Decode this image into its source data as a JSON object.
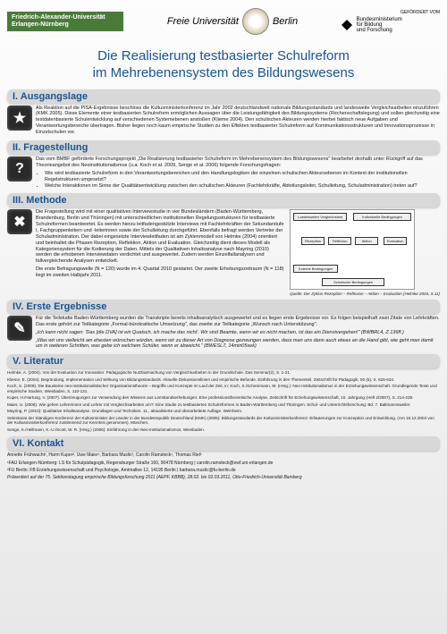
{
  "header": {
    "uni_left_line1": "Friedrich-Alexander-Universität",
    "uni_left_line2": "Erlangen-Nürnberg",
    "fu_prefix": "Freie Universität",
    "fu_suffix": "Berlin",
    "sponsor_label": "GEFÖRDERT VOM",
    "ministry_line1": "Bundesministerium",
    "ministry_line2": "für Bildung",
    "ministry_line3": "und Forschung"
  },
  "title": {
    "line1": "Die Realisierung testbasierter Schulreform",
    "line2": "im Mehrebenensystem des Bildungswesens"
  },
  "sections": {
    "s1": {
      "heading": "I.   Ausgangslage",
      "icon": "★",
      "p1": "Als Reaktion auf die PISA-Ergebnisse beschloss die Kultusministerkonferenz im Jahr 2002 deutschlandweit nationale Bildungsstandards und landesweite Vergleichsarbeiten einzuführen (KMK 2005). Diese Elemente einer testbasierten Schulreform ermöglichen Aussagen über die Leistungsfähigkeit des Bildungssystems (Rechenschaftslegung) und sollen gleichzeitig eine testdatenbasierte Schulentwicklung auf verschiedenen Systemebenen anstoßen (Klieme 2004). Den schulischen Akteuren werden hierbei faktisch neue Aufgaben und Verantwortungsbereiche übertragen. Bisher liegen noch kaum empirische Studien zu den Effekten testbasierter Schulreform auf Kommunikationsstrukturen und Innovationsprozesse in Einzelschulen vor."
    },
    "s2": {
      "heading": "II.  Fragestellung",
      "icon": "?",
      "p1": "Das vom BMBF geförderte Forschungsprojekt „Die Realisierung testbasierter Schulreform im Mehrebenensystem des Bildungswesens\" bearbeitet deshalb unter Rückgriff auf das Theorieangebot des Neoinstitutionalismus (u.a. Koch et al. 2009, Senge et al. 2006) folgende Forschungsfragen:",
      "li1": "Wie wird testbasierte Schulreform in den Verantwortungsbereichen und den Handlungslogiken der einzelnen schulischen Akteursebenen im Kontext der institutionellen Regelstrukturen umgesetzt?",
      "li2": "Welche Interaktionen im Sinne der Qualitätsentwicklung zwischen den schulischen Akteuren (Fachlehrkräfte, Abteilungsleiter, Schulleitung, Schuladministration) treten auf?"
    },
    "s3": {
      "heading": "III. Methode",
      "icon": "✖",
      "p1": "Die Fragestellung wird mit einer qualitativen Interviewstudie in vier Bundesländern (Baden-Württemberg, Brandenburg, Berlin und Thüringen) mit unterschiedlichen institutionellen Regelungsstrukturen für testbasierte Schulreformen beantwortet. Es werden hierzu leitfadengestützte Interviews mit Fachlehrkräften der Sekundarstufe I, Fachgruppenleitern und -leiterinnen sowie der Schulleitung durchgeführt. Ebenfalls befragt werden Vertreter der Schuladministration. Der dabei eingesetzte Interviewleitfaden ist am Zyklenmodell von Helmke (2004) orientiert und beinhaltet die Phasen Rezeption, Reflektion, Aktion und Evaluation. Gleichzeitig dient dieses Modell als Kategoriensystem für die Kodierung der Daten. Mittels der Qualitativen Inhaltsanalyse nach Mayring (2010) werden die erhobenen Interviewdaten verdichtet und ausgewertet. Zudem werden Einzelfallanalysen und fallvergleichende Analysen entwickelt.",
      "p2": "Die erste Befragungswelle (N = 120) wurde im 4. Quartal 2010 gestartet. Der zweite Erhebungszeitraum (N = 118) liegt im zweiten Halbjahr 2011.",
      "diagram": {
        "box1": "Landesweiter Vergleichstest",
        "box2": "Individuelle Bedingungen",
        "box3": "Rezeption",
        "box4": "Reflexion",
        "box5": "Aktion",
        "box6": "Evaluation",
        "box7": "Externe Bedingungen",
        "box8": "Schulische Bedingungen",
        "caption": "Quelle:  Der Zyklus Rezeption – Reflexion – Aktion – Evaluation (Helmke 2004, S.11)"
      }
    },
    "s4": {
      "heading": "IV. Erste Ergebnisse",
      "icon": "✎",
      "p1": "Für die Teilstudie Baden-Württemberg wurden die Transkripte bereits inhaltsanalytisch ausgewertet und es liegen erste Ergebnisse vor. Es folgen beispielhaft zwei Zitate von Lehrkräften. Das erste gehört zur Teilkategorie „Formal-bürokratische Umsetzung\", das zweite zur Teilkategorie „Wunsch nach Unterstützung\".",
      "q1": "„Ich kann nicht sagen: 'Das [die DVA] ist ein Quatsch, ich mache das nicht'. Wir sind Beamte, wenn wir es nicht machen, ist das ein Dienstvergehen!\" (BWBRL4, Z.136ff.)",
      "q2": "„Was wir uns vielleicht am ehesten wünschen würden, wenn wir zu dieser Art von Diagnose gezwungen werden, dass man uns dann auch etwas an die Hand gibt, wie geht man damit um in weiteren Schritten, was gebe ich welchem Schüler, wenn er abweicht.\" (BWESL7, 14min05sek)"
    },
    "s5": {
      "heading": "V.  Literatur",
      "refs": [
        "Helmke, A. (2004). Von der Evaluation zur Innovation: Pädagogische Nutzbarmachung von Vergleichsarbeiten in der Grundschule. Das Seminar(2), S. 1-21.",
        "Klieme, E. (2004). Begründung, Implementation und Wirkung von Bildungsstandards. Aktuelle Diskussionslinien und empirische Befunde. Einführung in den Thementeil. Zeitschrift für Pädagogik, 50 (5), S. 625-634.",
        "Koch, S. (2009). Die Bausteine neo-institutionalistischer Organisationstheorie – Begriffe und Konzepte im Lauf der Zeit, in: Koch, S./Schemmann, M. (Hrsg.): Neo-Institutionalismus in der Erziehungswissenschaft. Grundlegende Texte und empirische Studien, Wiesbaden, S. 110-131.",
        "Kuper, H./Hartung, V. (2007). Überzeugungen zur Verwendung des Wissens aus Lernstandserhebungen: Eine professionstheoretische Analyse. Zeitschrift für Erziehungswissenschaft, 10. Jahrgang (Heft 2/2007), S. 214-229.",
        "Maier, U. (2008). Wie gehen Lehrerinnen und Lehrer mit Vergleichsarbeiten um?: Eine Studie zu testbasierten Schulreformen in Baden-Württemberg und Thüringen. Schul- und Unterrichtsforschung: Bd. 7. Baltmannsweiler.",
        "Mayring, P. (2010): Qualitative Inhaltsanalyse. Grundlagen und Techniken. 11., aktualisierte und überarbeitete Auflage. Weinheim.",
        "Sekretariat der Ständigen Konferenz der Kultusminister der Länder in der Bundesrepublik Deutschland (KMK) (2005): Bildungsstandards der Kultusministerkonferenz: Erläuterungen zur Konzeption und Entwicklung. (Am 16.12.2004 von der Kultusministerkonferenz zustimmend zur Kenntnis genommen), München.",
        "Senge, K./Hellmann, K.-U./Scott, W. R. (Hrsg.) (2006): Einführung in den Neo-Institutionalismus, Wiesbaden."
      ]
    },
    "s6": {
      "heading": "VI. Kontakt",
      "line1": "Annette Frühwacht¹, Harm Kuper², Uwe Maier¹, Barbara Muslic², Carolin Ramsteck¹, Thomas Riel²",
      "line2": "¹FAU Erlangen-Nürnberg: LS für Schulpädagogik, Regensburger Straße 160, 90478 Nürnberg | carolin.ramsteck@ewf.uni-erlangen.de",
      "line3": "²FU Berlin: FB Erziehungswissenschaft und Psychologie, Arnimallee 12, 14195 Berlin | barbara.muslic@fu-berlin.de",
      "line4": "Präsentiert auf der 75. Sektionstagung empirische Bildungsforschung 2011 (AEPF, KBBB), 28.02. bis 02.03.2011, Otto-Friedrich-Universität Bamberg"
    }
  },
  "colors": {
    "heading_blue": "#1a5490",
    "section_bg": "#d8d8d8",
    "icon_bg": "#2a2a2a",
    "uni_green": "#4a7a3a"
  }
}
